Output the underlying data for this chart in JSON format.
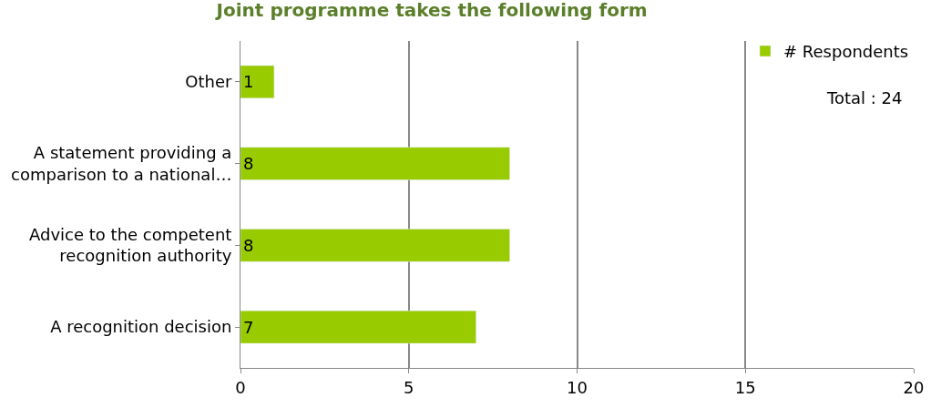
{
  "chart_data": {
    "type": "bar",
    "orientation": "horizontal",
    "title": "Joint programme takes the following form",
    "categories": [
      "Other",
      "A statement providing a comparison to a national…",
      "Advice to the competent recognition authority",
      "A recognition decision"
    ],
    "series": [
      {
        "name": "# Respondents",
        "color": "#99cc00",
        "values": [
          1,
          8,
          8,
          7
        ]
      }
    ],
    "xlim": [
      0,
      20
    ],
    "xticks": [
      0,
      5,
      10,
      15,
      20
    ],
    "grid": "x",
    "legend": "top right",
    "data_labels": true,
    "annotations": [
      "Total : 24"
    ]
  }
}
